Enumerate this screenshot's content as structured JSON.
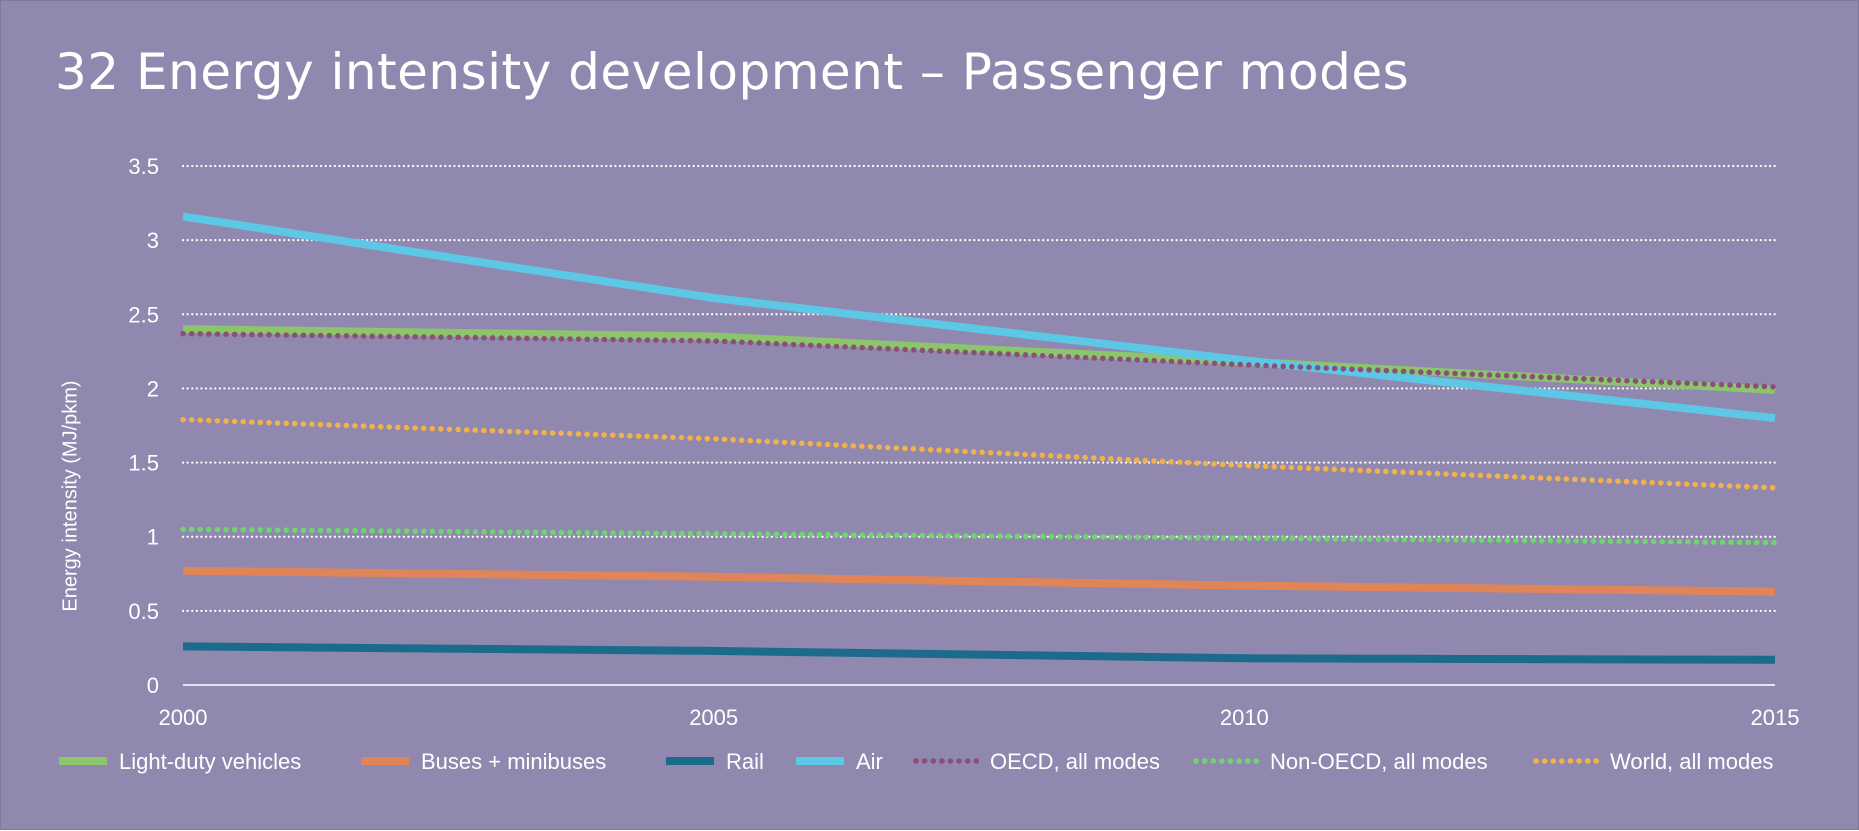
{
  "page": {
    "title": "32 Energy intensity development – Passenger modes"
  },
  "colors": {
    "background": "#9088ae",
    "grid": "#ffffff",
    "text": "#ffffff"
  },
  "chart_data": {
    "type": "line",
    "title": "32 Energy intensity development – Passenger modes",
    "xlabel": "",
    "ylabel": "Energy intensity  (MJ/pkm)",
    "xlim": [
      2000,
      2015
    ],
    "ylim": [
      0,
      3.5
    ],
    "x_ticks": [
      2000,
      2005,
      2010,
      2015
    ],
    "y_ticks": [
      0,
      0.5,
      1,
      1.5,
      2,
      2.5,
      3,
      3.5
    ],
    "y_tick_labels": [
      "0",
      "0.5",
      "1",
      "1.5",
      "2",
      "2.5",
      "3",
      "3.5"
    ],
    "x_tick_labels": [
      "2000",
      "2005",
      "2010",
      "2015"
    ],
    "grid": "horizontal dotted",
    "legend_position": "bottom",
    "x": [
      2000,
      2005,
      2010,
      2015
    ],
    "series": [
      {
        "name": "Light-duty vehicles",
        "values": [
          2.4,
          2.35,
          2.18,
          1.99
        ],
        "color": "#8cc56b",
        "style": "solid"
      },
      {
        "name": "Buses + minibuses",
        "values": [
          0.77,
          0.73,
          0.67,
          0.63
        ],
        "color": "#e08558",
        "style": "solid"
      },
      {
        "name": "Rail",
        "values": [
          0.26,
          0.23,
          0.18,
          0.17
        ],
        "color": "#1d6b8c",
        "style": "solid"
      },
      {
        "name": "Air",
        "values": [
          3.16,
          2.61,
          2.19,
          1.8
        ],
        "color": "#5cc8e6",
        "style": "solid"
      },
      {
        "name": "OECD, all modes",
        "values": [
          2.37,
          2.32,
          2.16,
          2.01
        ],
        "color": "#8a5078",
        "style": "dotted"
      },
      {
        "name": "Non-OECD, all modes",
        "values": [
          1.05,
          1.02,
          0.99,
          0.96
        ],
        "color": "#6fd66f",
        "style": "dotted"
      },
      {
        "name": "World, all modes",
        "values": [
          1.79,
          1.66,
          1.48,
          1.33
        ],
        "color": "#f2b24a",
        "style": "dotted"
      }
    ]
  }
}
